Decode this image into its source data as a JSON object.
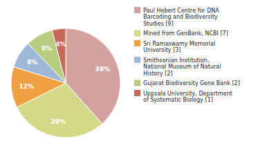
{
  "chart_data": {
    "type": "pie",
    "categories": [
      "Paul Hebert Centre for DNA\nBarcoding and Biodiversity\nStudies [9]",
      "Mined from GenBank, NCBI [7]",
      "Sri Ramaswamy Memorial\nUniversity [3]",
      "Smithsonian Institution,\nNational Museum of Natural\nHistory [2]",
      "Gujarat Biodiversity Gene Bank [2]",
      "Uppsala University, Department\nof Systematic Biology [1]"
    ],
    "values": [
      38,
      29,
      12,
      8,
      8,
      4
    ],
    "value_labels": [
      "38%",
      "29%",
      "12%",
      "8%",
      "8%",
      "4%"
    ],
    "colors": [
      "#d4a0a0",
      "#d4d98a",
      "#f0a040",
      "#a0b8d8",
      "#b8cc80",
      "#c86858"
    ],
    "data_labels": true,
    "legend": "right"
  }
}
